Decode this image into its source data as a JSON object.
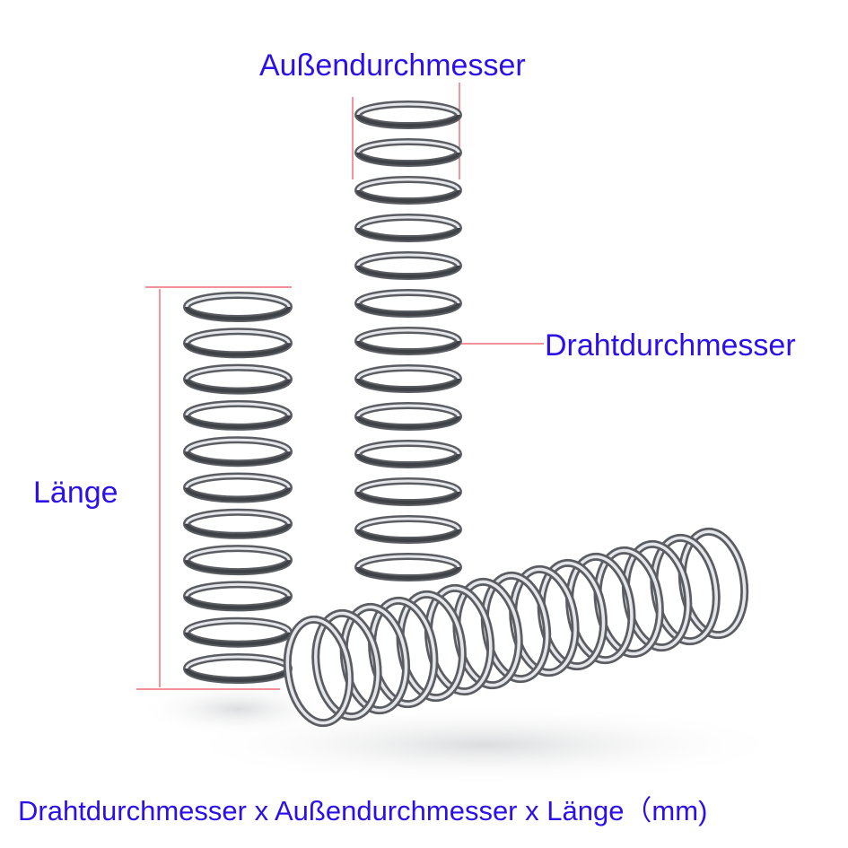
{
  "labels": {
    "outer_diameter": "Außendurchmesser",
    "wire_diameter": "Drahtdurchmesser",
    "length": "Länge",
    "caption": "Drahtdurchmesser x Außendurchmesser x Länge（mm)"
  },
  "colors": {
    "label_text": "#2b10e8",
    "dimension_line": "#e8505a",
    "spring_dark": "#5a5d62",
    "spring_light": "#e4e6e9",
    "background": "#ffffff"
  },
  "springs": [
    {
      "name": "short-standing-spring",
      "coils": 11
    },
    {
      "name": "tall-standing-spring",
      "coils": 13
    },
    {
      "name": "lying-spring",
      "coils": 15
    }
  ]
}
